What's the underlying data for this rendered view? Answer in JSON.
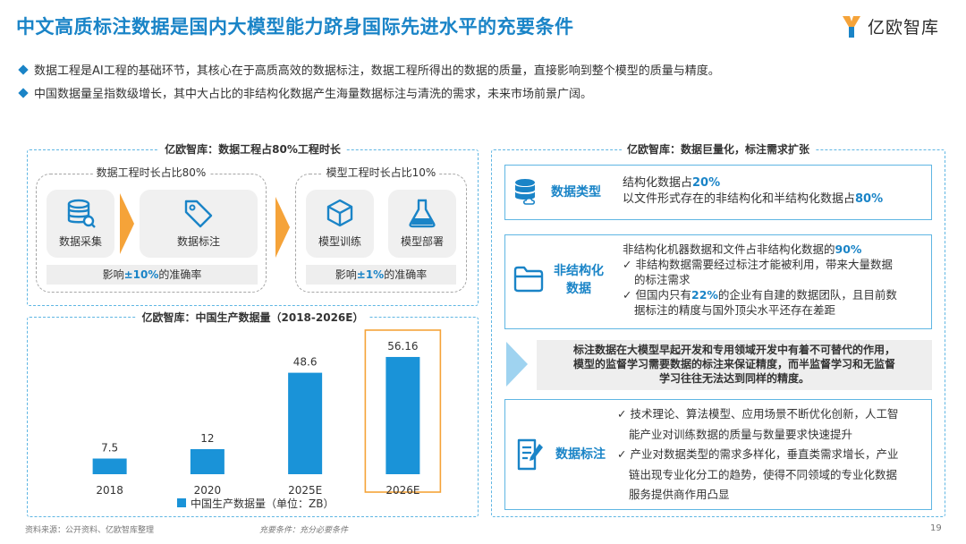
{
  "header": {
    "title": "中文高质标注数据是国内大模型能力跻身国际先进水平的充要条件",
    "logo_text": "亿欧智库"
  },
  "bullets": [
    "数据工程是AI工程的基础环节，其核心在于高质高效的数据标注，数据工程所得出的数据的质量，直接影响到整个模型的质量与精度。",
    "中国数据量呈指数级增长，其中大占比的非结构化数据产生海量数据标注与清洗的需求，未来市场前景广阔。"
  ],
  "left_top": {
    "title": "亿欧智库：数据工程占80%工程时长",
    "group1": {
      "label": "数据工程时长占比80%",
      "cards": [
        "数据采集",
        "数据标注"
      ],
      "impact_pre": "影响",
      "impact_hl": "±10%",
      "impact_post": "的准确率"
    },
    "group2": {
      "label": "模型工程时长占比10%",
      "cards": [
        "模型训练",
        "模型部署"
      ],
      "impact_pre": "影响",
      "impact_hl": "±1%",
      "impact_post": "的准确率"
    }
  },
  "chart_data": {
    "type": "bar",
    "title": "亿欧智库：中国生产数据量（2018-2026E）",
    "categories": [
      "2018",
      "2020",
      "2025E",
      "2026E"
    ],
    "series": [
      {
        "name": "中国生产数据量（单位：ZB）",
        "values": [
          7.5,
          12,
          48.6,
          56.16
        ]
      }
    ],
    "value_labels": [
      "7.5",
      "12",
      "48.6",
      "56.16"
    ],
    "highlight_category": "2026E",
    "ylim": [
      0,
      60
    ],
    "xlabel": "",
    "ylabel": "",
    "legend_position": "bottom",
    "bar_color": "#1a93d8",
    "highlight_color": "#f5a339"
  },
  "right": {
    "title": "亿欧智库：数据巨量化，标注需求扩张",
    "box1": {
      "label": "数据类型",
      "line1_pre": "结构化数据占",
      "line1_hl": "20%",
      "line2_pre": "以文件形式存在的非结构化和半结构化数据占",
      "line2_hl": "80%"
    },
    "box2": {
      "label_line1": "非结构化",
      "label_line2": "数据",
      "head_pre": "非结构化机器数据和文件占非结构化数据的",
      "head_hl": "90%",
      "item1_line1": "非结构数据需要经过标注才能被利用，带来大量数据",
      "item1_line2": "的标注需求",
      "item2_pre": "但国内只有",
      "item2_hl": "22%",
      "item2_post": "的企业有自建的数据团队，且目前数",
      "item2_line2": "据标注的精度与国外顶尖水平还存在差距"
    },
    "callout": {
      "line1": "标注数据在大模型早起开发和专用领域开发中有着不可替代的作用，",
      "line2": "模型的监督学习需要数据的标注来保证精度，而半监督学习和无监督",
      "line3": "学习往往无法达到同样的精度。"
    },
    "box3": {
      "label": "数据标注",
      "item1_line1": "技术理论、算法模型、应用场景不断优化创新，人工智",
      "item1_line2": "能产业对训练数据的质量与数量要求快速提升",
      "item2_line1": "产业对数据类型的需求多样化，垂直类需求增长，产业",
      "item2_line2": "链出现专业化分工的趋势，使得不同领域的专业化数据",
      "item2_line3": "服务提供商作用凸显"
    }
  },
  "footer": {
    "source": "资料来源：公开资料、亿欧智库整理",
    "note": "充要条件：充分必要条件",
    "page": "19",
    "check_mark": "✓"
  },
  "icons": [
    "database-search-icon",
    "tag-icon",
    "cube-icon",
    "flask-icon",
    "database-cloud-icon",
    "folder-icon",
    "document-edit-icon",
    "logo-icon"
  ]
}
